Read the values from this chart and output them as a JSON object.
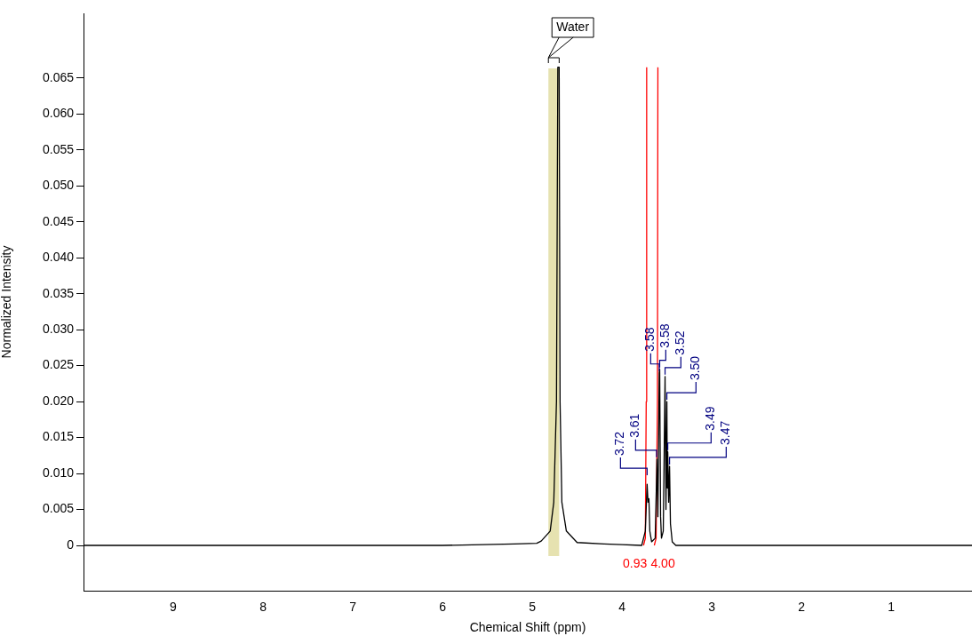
{
  "chart_data": {
    "type": "line",
    "xlabel": "Chemical Shift (ppm)",
    "ylabel": "Normalized Intensity",
    "xlim": [
      10,
      0.1
    ],
    "xticks": [
      9,
      8,
      7,
      6,
      5,
      4,
      3,
      2,
      1
    ],
    "ylim": [
      -0.0063,
      0.074
    ],
    "yticks": [
      0,
      0.005,
      {
        "value": 0.01,
        "label": "0.010"
      },
      0.015,
      {
        "value": 0.02,
        "label": "0.020"
      },
      0.025,
      {
        "value": 0.03,
        "label": "0.030"
      },
      0.035,
      {
        "value": 0.04,
        "label": "0.040"
      },
      0.045,
      {
        "value": 0.05,
        "label": "0.050"
      },
      0.055,
      {
        "value": 0.06,
        "label": "0.060"
      },
      0.065
    ],
    "grid": false,
    "legend": false,
    "marker": "none",
    "line_style": "solid",
    "series": [
      {
        "color": "#000000",
        "x": [
          10,
          6,
          5.2,
          4.95,
          4.9,
          4.8,
          4.76,
          4.73,
          4.715,
          4.7,
          4.69,
          4.67,
          4.62,
          4.5,
          4.2,
          4.0,
          3.78,
          3.74,
          3.72,
          3.71,
          3.7,
          3.69,
          3.67,
          3.63,
          3.61,
          3.6,
          3.585,
          3.58,
          3.57,
          3.56,
          3.54,
          3.52,
          3.51,
          3.5,
          3.495,
          3.49,
          3.48,
          3.47,
          3.46,
          3.44,
          3.4,
          3,
          0.1
        ],
        "values": [
          0,
          0,
          0.0002,
          0.0003,
          0.0006,
          0.002,
          0.006,
          0.02,
          0.0665,
          0.0665,
          0.02,
          0.006,
          0.002,
          0.0004,
          0.0002,
          0.0001,
          0,
          0.002,
          0.0085,
          0.006,
          0.0065,
          0.002,
          0.0005,
          0.001,
          0.012,
          0.004,
          0.024,
          0.0245,
          0.004,
          0.001,
          0.002,
          0.0235,
          0.005,
          0.02,
          0.008,
          0.013,
          0.006,
          0.011,
          0.003,
          0.0005,
          0,
          0,
          0
        ]
      },
      {
        "name": "0.93",
        "color": "#ff0000",
        "x": [
          3.76,
          3.74,
          3.73,
          3.725
        ],
        "values": [
          0,
          0.001,
          0.02,
          0.0665
        ]
      },
      {
        "name": "4.00",
        "color": "#ff0000",
        "x": [
          3.64,
          3.62,
          3.605,
          3.6
        ],
        "values": [
          0,
          0.001,
          0.02,
          0.0665
        ]
      }
    ],
    "bands": [
      {
        "axis": "x",
        "from": 4.82,
        "to": 4.7,
        "label": "Water",
        "color": "#e6e2b0"
      }
    ],
    "annotations": [
      {
        "text": "3.72",
        "x": 3.72,
        "y": 0.0095
      },
      {
        "text": "3.61",
        "x": 3.615,
        "y": 0.012
      },
      {
        "text": "3.58",
        "x": 3.585,
        "y": 0.024
      },
      {
        "text": "3.58",
        "x": 3.58,
        "y": 0.0245
      },
      {
        "text": "3.52",
        "x": 3.52,
        "y": 0.0235
      },
      {
        "text": "3.50",
        "x": 3.5,
        "y": 0.02
      },
      {
        "text": "3.49",
        "x": 3.49,
        "y": 0.013
      },
      {
        "text": "3.47",
        "x": 3.47,
        "y": 0.011
      }
    ]
  }
}
